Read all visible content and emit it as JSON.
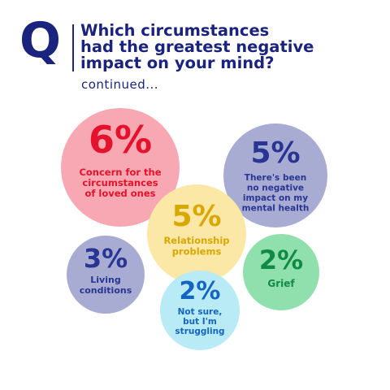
{
  "header": {
    "q_letter": "Q",
    "title_lines": [
      "Which circumstances",
      "had the greatest negative",
      "impact on your mind?"
    ],
    "subtitle": "continued..."
  },
  "chart_data": {
    "type": "bubble",
    "items": [
      {
        "value": "6%",
        "number": 6,
        "label_lines": [
          "Concern for the",
          "circumstances",
          "of loved ones"
        ],
        "fill": "#f7a8b3",
        "text_color": "#e4122b"
      },
      {
        "value": "5%",
        "number": 5,
        "label_lines": [
          "There's been",
          "no negative",
          "impact on my",
          "mental health"
        ],
        "fill": "#a9acd2",
        "text_color": "#283593"
      },
      {
        "value": "5%",
        "number": 5,
        "label_lines": [
          "Relationship",
          "problems"
        ],
        "fill": "#fbe7a6",
        "text_color": "#d8a800"
      },
      {
        "value": "3%",
        "number": 3,
        "label_lines": [
          "Living",
          "conditions"
        ],
        "fill": "#a9acd2",
        "text_color": "#283593"
      },
      {
        "value": "2%",
        "number": 2,
        "label_lines": [
          "Grief"
        ],
        "fill": "#8fe0ad",
        "text_color": "#108a44"
      },
      {
        "value": "2%",
        "number": 2,
        "label_lines": [
          "Not sure,",
          "but I'm",
          "struggling"
        ],
        "fill": "#b8ebf6",
        "text_color": "#1565c0"
      }
    ]
  }
}
